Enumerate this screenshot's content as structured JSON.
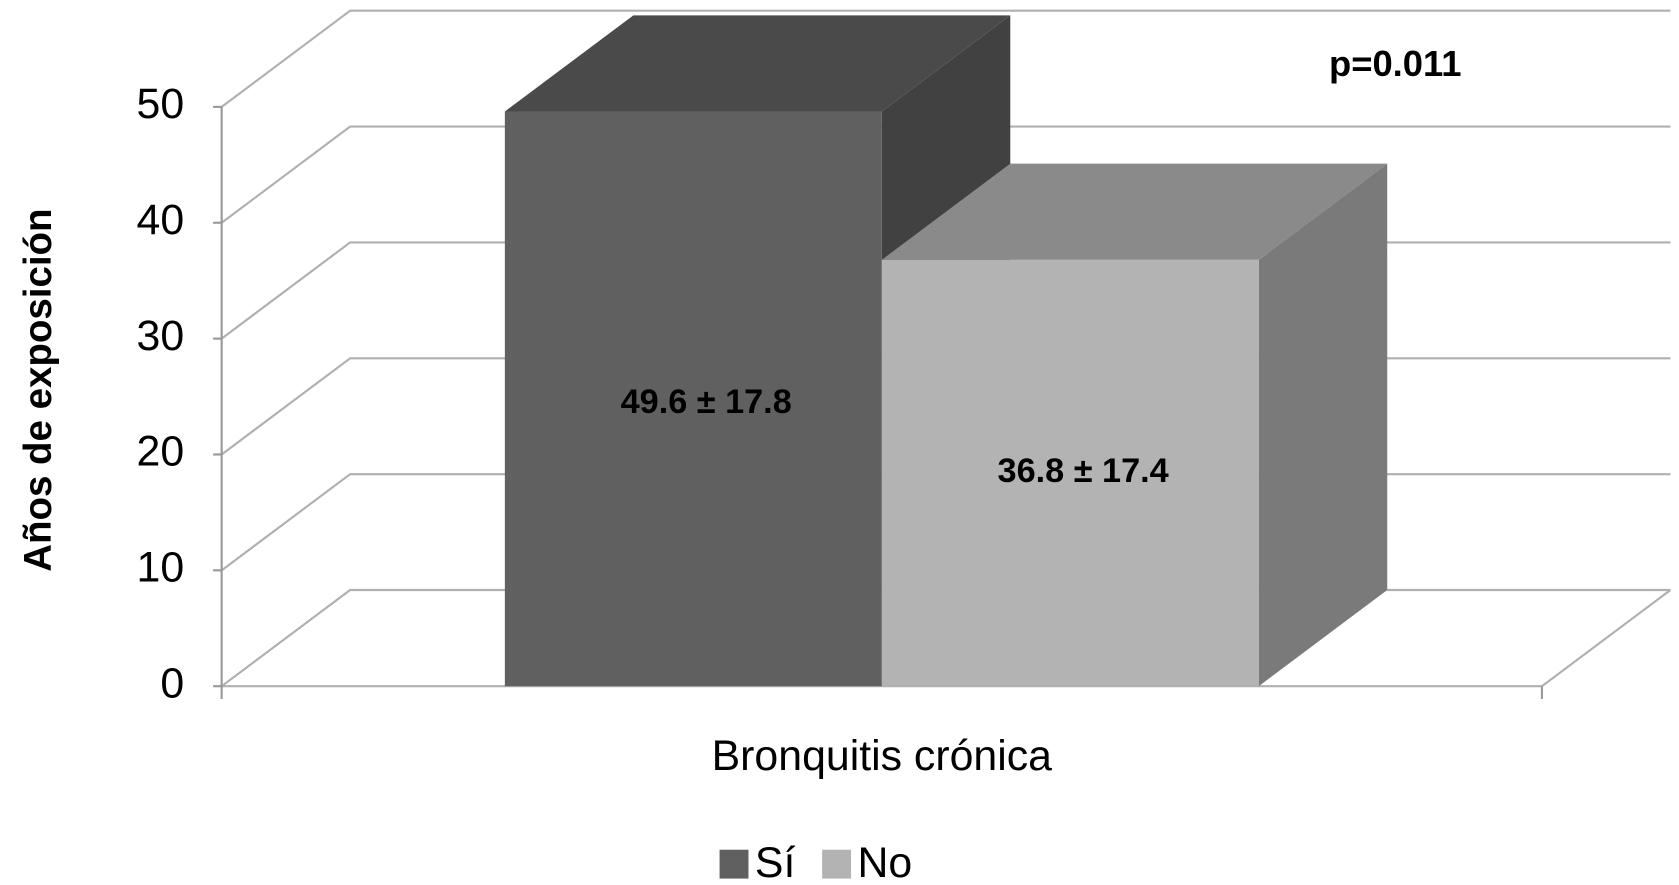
{
  "chart_data": {
    "type": "bar3d",
    "y_label": "Años de exposición",
    "categories": [
      "Bronquitis crónica"
    ],
    "annotation": "p=0.011",
    "series": [
      {
        "name": "Sí",
        "color": "#606060",
        "values": [
          49.6
        ],
        "value_labels": [
          "49.6 ± 17.8"
        ]
      },
      {
        "name": "No",
        "color": "#b3b3b3",
        "values": [
          36.8
        ],
        "value_labels": [
          "36.8 ± 17.4"
        ]
      }
    ],
    "ylim": [
      0,
      50
    ],
    "yticks": [
      0,
      10,
      20,
      30,
      40,
      50
    ],
    "grid": true,
    "legend": "bottom"
  }
}
